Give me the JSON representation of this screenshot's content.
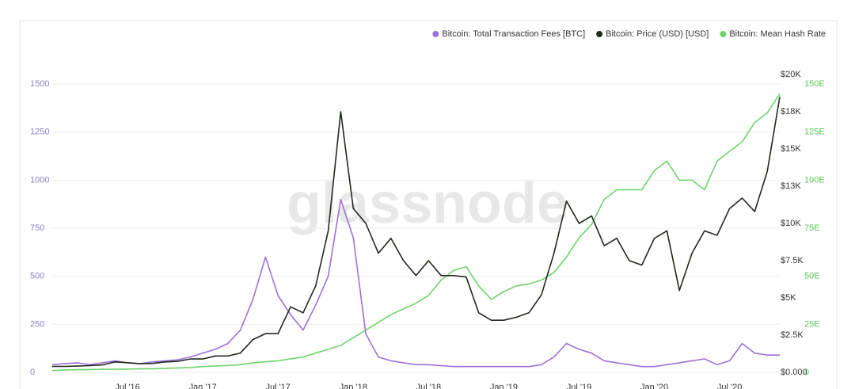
{
  "chart_data": {
    "type": "line",
    "watermark": "glassnode",
    "categories": [
      null,
      null,
      null,
      null,
      null,
      null,
      "Jul '16",
      null,
      null,
      null,
      null,
      null,
      "Jan '17",
      null,
      null,
      null,
      null,
      null,
      "Jul '17",
      null,
      null,
      null,
      null,
      null,
      "Jan '18",
      null,
      null,
      null,
      null,
      null,
      "Jul '18",
      null,
      null,
      null,
      null,
      null,
      "Jan '19",
      null,
      null,
      null,
      null,
      null,
      "Jul '19",
      null,
      null,
      null,
      null,
      null,
      "Jan '20",
      null,
      null,
      null,
      null,
      null,
      "Jul '20",
      null,
      null,
      null,
      null
    ],
    "ylim": [
      0,
      1550
    ],
    "yticks": [
      0,
      250,
      500,
      750,
      1000,
      1250,
      1500
    ],
    "y2lim": [
      0,
      20000
    ],
    "y2ticks": [
      {
        "value": 0,
        "label": "$0.000"
      },
      {
        "value": 2500,
        "label": "$2.5K"
      },
      {
        "value": 5000,
        "label": "$5K"
      },
      {
        "value": 7500,
        "label": "$7.5K"
      },
      {
        "value": 10000,
        "label": "$10K"
      },
      {
        "value": 12500,
        "label": "$13K"
      },
      {
        "value": 15000,
        "label": "$15K"
      },
      {
        "value": 17500,
        "label": "$18K"
      },
      {
        "value": 20000,
        "label": "$20K"
      }
    ],
    "y3lim": [
      0,
      155
    ],
    "y3ticks": [
      0,
      {
        "value": 25,
        "label": "25E"
      },
      {
        "value": 50,
        "label": "50E"
      },
      {
        "value": 75,
        "label": "75E"
      },
      {
        "value": 100,
        "label": "100E"
      },
      {
        "value": 125,
        "label": "125E"
      },
      {
        "value": 150,
        "label": "150E"
      }
    ],
    "grid": true,
    "legend": "top-right",
    "series": [
      {
        "name": "Bitcoin: Total Transaction Fees [BTC]",
        "color": "#9d72d8",
        "axis": "y",
        "values": [
          40,
          45,
          50,
          40,
          50,
          60,
          50,
          45,
          55,
          60,
          65,
          80,
          100,
          120,
          150,
          220,
          380,
          600,
          400,
          300,
          220,
          350,
          500,
          900,
          700,
          200,
          80,
          60,
          50,
          40,
          40,
          35,
          30,
          30,
          30,
          30,
          30,
          30,
          30,
          40,
          80,
          150,
          120,
          100,
          60,
          50,
          40,
          30,
          30,
          40,
          50,
          60,
          70,
          40,
          60,
          150,
          100,
          90,
          90
        ]
      },
      {
        "name": "Bitcoin: Price (USD) [USD]",
        "color": "#1f2a1c",
        "axis": "y2",
        "values": [
          400,
          400,
          420,
          450,
          500,
          700,
          650,
          580,
          600,
          700,
          740,
          900,
          900,
          1100,
          1100,
          1300,
          2200,
          2600,
          2600,
          4400,
          4000,
          5800,
          9500,
          17500,
          11000,
          10000,
          8000,
          9000,
          7500,
          6500,
          7500,
          6500,
          6500,
          6400,
          4000,
          3500,
          3500,
          3700,
          4000,
          5200,
          8000,
          11500,
          10000,
          10500,
          8500,
          9000,
          7500,
          7200,
          9000,
          9500,
          5500,
          8000,
          9500,
          9200,
          11000,
          11700,
          10800,
          13500,
          18500
        ]
      },
      {
        "name": "Bitcoin: Mean Hash Rate",
        "color": "#6fd36b",
        "axis": "y3",
        "values": [
          1,
          1.2,
          1.4,
          1.5,
          1.6,
          1.6,
          1.7,
          1.8,
          1.9,
          2.1,
          2.3,
          2.5,
          3,
          3.3,
          3.6,
          4,
          5,
          5.5,
          6,
          7,
          8,
          10,
          12,
          14,
          18,
          22,
          26,
          30,
          33,
          36,
          40,
          48,
          53,
          55,
          45,
          38,
          42,
          45,
          46,
          48,
          52,
          60,
          70,
          77,
          90,
          95,
          95,
          95,
          105,
          110,
          100,
          100,
          95,
          110,
          115,
          120,
          130,
          135,
          145
        ]
      }
    ]
  }
}
